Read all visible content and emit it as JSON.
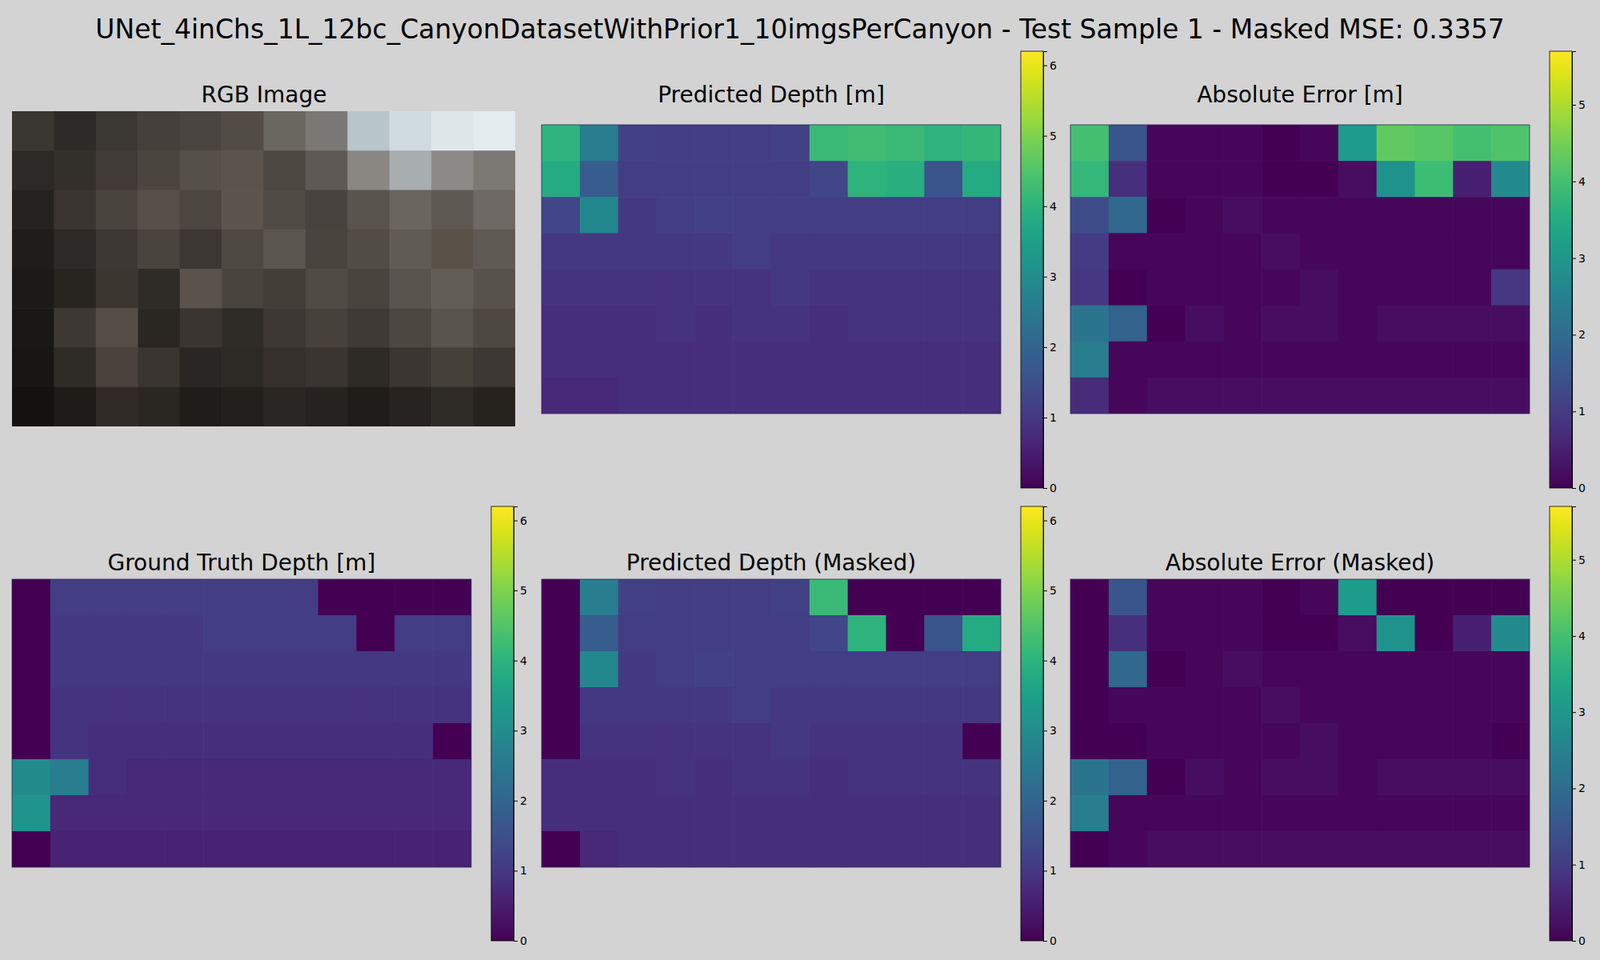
{
  "title": "UNet_4inChs_1L_12bc_CanyonDatasetWithPrior1_10imgsPerCanyon - Test Sample 1 - Masked MSE: 0.3357",
  "chart_data": [
    {
      "type": "image",
      "title": "RGB Image",
      "tick_labels": false,
      "pixels": [
        [
          "#3a3632",
          "#2e2a27",
          "#3b3733",
          "#45403b",
          "#4a4540",
          "#524c46",
          "#6a6660",
          "#7a7874",
          "#b8c6cc",
          "#d0dbe0",
          "#dfe7ea",
          "#e4ecef"
        ],
        [
          "#2c2926",
          "#332f2b",
          "#403b36",
          "#4b4540",
          "#56504a",
          "#5a544d",
          "#4d4842",
          "#5e5954",
          "#8a8782",
          "#a8aeb0",
          "#8c8a86",
          "#7c7975"
        ],
        [
          "#25221f",
          "#3a3531",
          "#4a443e",
          "#57504a",
          "#4c4640",
          "#5b554e",
          "#514b45",
          "#48433e",
          "#5a544e",
          "#6a655f",
          "#5e5953",
          "#6e6964"
        ],
        [
          "#1f1c1a",
          "#2e2a27",
          "#3d3833",
          "#4a443e",
          "#3c3733",
          "#4f4944",
          "#5c5650",
          "#4a443f",
          "#524c46",
          "#615b55",
          "#585249",
          "#5f5a54"
        ],
        [
          "#1c1a18",
          "#28241f",
          "#3c3631",
          "#2f2b27",
          "#5a524b",
          "#4a443e",
          "#433e38",
          "#514b45",
          "#4a443f",
          "#5a544e",
          "#635d57",
          "#57524c"
        ],
        [
          "#1a1816",
          "#3d3833",
          "#544d46",
          "#2a2622",
          "#3a3531",
          "#2f2b27",
          "#3d3833",
          "#47413b",
          "#3f3a35",
          "#4d4742",
          "#5a544e",
          "#4e4843"
        ],
        [
          "#181614",
          "#2f2b27",
          "#4a433d",
          "#3a3530",
          "#2a2623",
          "#2d2925",
          "#35302c",
          "#3a3530",
          "#2e2a26",
          "#3b3631",
          "#46403b",
          "#3d3833"
        ],
        [
          "#141210",
          "#1e1b18",
          "#302b27",
          "#2a2622",
          "#1f1c19",
          "#221f1c",
          "#2a2623",
          "#25221f",
          "#1f1c1a",
          "#272320",
          "#2f2b27",
          "#26231f"
        ]
      ]
    },
    {
      "type": "heatmap",
      "title": "Predicted Depth [m]",
      "color": "viridis",
      "tick_labels": false,
      "colorbar": {
        "lim": [
          0,
          6.2
        ],
        "ticks": [
          0,
          1,
          2,
          3,
          4,
          5,
          6
        ]
      },
      "cells": [
        [
          4.0,
          2.6,
          1.2,
          1.1,
          1.1,
          1.1,
          1.2,
          4.2,
          4.3,
          4.2,
          4.0,
          4.1
        ],
        [
          3.8,
          1.8,
          1.1,
          1.1,
          1.1,
          1.1,
          1.1,
          1.3,
          4.0,
          3.9,
          1.6,
          3.8
        ],
        [
          1.3,
          2.9,
          1.0,
          1.1,
          1.2,
          1.1,
          1.1,
          1.1,
          1.1,
          1.1,
          1.1,
          1.1
        ],
        [
          1.0,
          1.0,
          1.0,
          1.0,
          1.0,
          1.1,
          1.0,
          1.0,
          1.0,
          1.0,
          1.0,
          1.0
        ],
        [
          0.9,
          0.9,
          0.9,
          0.9,
          0.9,
          0.9,
          1.0,
          0.9,
          0.9,
          0.9,
          0.9,
          0.9
        ],
        [
          0.8,
          0.8,
          0.8,
          0.9,
          0.8,
          0.9,
          0.9,
          0.8,
          0.9,
          0.9,
          0.9,
          0.9
        ],
        [
          0.8,
          0.8,
          0.8,
          0.8,
          0.8,
          0.8,
          0.8,
          0.8,
          0.8,
          0.8,
          0.8,
          0.8
        ],
        [
          0.7,
          0.7,
          0.8,
          0.8,
          0.8,
          0.8,
          0.8,
          0.8,
          0.8,
          0.8,
          0.8,
          0.8
        ]
      ]
    },
    {
      "type": "heatmap",
      "title": "Absolute Error [m]",
      "color": "viridis",
      "tick_labels": false,
      "colorbar": {
        "lim": [
          0,
          5.7
        ],
        "ticks": [
          0,
          1,
          2,
          3,
          4,
          5
        ]
      },
      "cells": [
        [
          4.0,
          1.5,
          0.1,
          0.1,
          0.1,
          0.0,
          0.1,
          3.1,
          4.3,
          4.2,
          4.0,
          4.1
        ],
        [
          3.8,
          0.8,
          0.1,
          0.1,
          0.1,
          0.0,
          0.0,
          0.2,
          2.9,
          3.9,
          0.5,
          2.7
        ],
        [
          1.3,
          1.9,
          0.0,
          0.1,
          0.2,
          0.1,
          0.1,
          0.1,
          0.1,
          0.1,
          0.1,
          0.1
        ],
        [
          1.0,
          0.1,
          0.1,
          0.1,
          0.1,
          0.2,
          0.1,
          0.1,
          0.1,
          0.1,
          0.1,
          0.1
        ],
        [
          0.9,
          0.0,
          0.1,
          0.1,
          0.1,
          0.1,
          0.2,
          0.1,
          0.1,
          0.1,
          0.1,
          0.9
        ],
        [
          2.2,
          1.8,
          0.0,
          0.2,
          0.1,
          0.2,
          0.2,
          0.1,
          0.2,
          0.2,
          0.2,
          0.2
        ],
        [
          2.4,
          0.1,
          0.1,
          0.1,
          0.1,
          0.1,
          0.1,
          0.1,
          0.1,
          0.1,
          0.1,
          0.1
        ],
        [
          0.7,
          0.1,
          0.2,
          0.2,
          0.2,
          0.2,
          0.2,
          0.2,
          0.2,
          0.2,
          0.2,
          0.2
        ]
      ]
    },
    {
      "type": "heatmap",
      "title": "Ground Truth Depth [m]",
      "color": "viridis",
      "tick_labels": false,
      "colorbar": {
        "lim": [
          0,
          6.2
        ],
        "ticks": [
          0,
          1,
          2,
          3,
          4,
          5,
          6
        ]
      },
      "cells": [
        [
          0,
          1.1,
          1.1,
          1.1,
          1.1,
          1.1,
          1.1,
          1.1,
          0,
          0,
          0,
          0
        ],
        [
          0,
          1.0,
          1.0,
          1.0,
          1.0,
          1.1,
          1.1,
          1.1,
          1.1,
          0,
          1.1,
          1.1
        ],
        [
          0,
          1.0,
          1.0,
          1.0,
          1.0,
          1.0,
          1.0,
          1.0,
          1.0,
          1.0,
          1.0,
          1.0
        ],
        [
          0,
          0.9,
          0.9,
          0.9,
          0.9,
          0.9,
          0.9,
          0.9,
          0.9,
          0.9,
          0.9,
          0.9
        ],
        [
          0,
          0.9,
          0.8,
          0.8,
          0.8,
          0.8,
          0.8,
          0.8,
          0.8,
          0.8,
          0.8,
          0
        ],
        [
          3.0,
          2.6,
          0.8,
          0.7,
          0.7,
          0.7,
          0.7,
          0.7,
          0.7,
          0.7,
          0.7,
          0.7
        ],
        [
          3.2,
          0.7,
          0.7,
          0.7,
          0.7,
          0.7,
          0.7,
          0.7,
          0.7,
          0.7,
          0.7,
          0.7
        ],
        [
          0,
          0.6,
          0.6,
          0.6,
          0.6,
          0.6,
          0.6,
          0.6,
          0.6,
          0.6,
          0.6,
          0.6
        ]
      ]
    },
    {
      "type": "heatmap",
      "title": "Predicted Depth (Masked)",
      "color": "viridis",
      "tick_labels": false,
      "colorbar": {
        "lim": [
          0,
          6.2
        ],
        "ticks": [
          0,
          1,
          2,
          3,
          4,
          5,
          6
        ]
      },
      "cells": [
        [
          0,
          2.6,
          1.2,
          1.1,
          1.1,
          1.1,
          1.2,
          4.2,
          0,
          0,
          0,
          0
        ],
        [
          0,
          1.8,
          1.1,
          1.1,
          1.1,
          1.1,
          1.1,
          1.3,
          4.0,
          0,
          1.6,
          3.8
        ],
        [
          0,
          2.9,
          1.0,
          1.1,
          1.2,
          1.1,
          1.1,
          1.1,
          1.1,
          1.1,
          1.1,
          1.1
        ],
        [
          0,
          1.0,
          1.0,
          1.0,
          1.0,
          1.1,
          1.0,
          1.0,
          1.0,
          1.0,
          1.0,
          1.0
        ],
        [
          0,
          0.9,
          0.9,
          0.9,
          0.9,
          0.9,
          1.0,
          0.9,
          0.9,
          0.9,
          0.9,
          0
        ],
        [
          0.8,
          0.8,
          0.8,
          0.9,
          0.8,
          0.9,
          0.9,
          0.8,
          0.9,
          0.9,
          0.9,
          0.9
        ],
        [
          0.8,
          0.8,
          0.8,
          0.8,
          0.8,
          0.8,
          0.8,
          0.8,
          0.8,
          0.8,
          0.8,
          0.8
        ],
        [
          0,
          0.7,
          0.8,
          0.8,
          0.8,
          0.8,
          0.8,
          0.8,
          0.8,
          0.8,
          0.8,
          0.8
        ]
      ]
    },
    {
      "type": "heatmap",
      "title": "Absolute Error (Masked)",
      "color": "viridis",
      "tick_labels": false,
      "colorbar": {
        "lim": [
          0,
          5.7
        ],
        "ticks": [
          0,
          1,
          2,
          3,
          4,
          5
        ]
      },
      "cells": [
        [
          0,
          1.5,
          0.1,
          0.1,
          0.1,
          0.0,
          0.1,
          3.1,
          0,
          0,
          0,
          0
        ],
        [
          0,
          0.8,
          0.1,
          0.1,
          0.1,
          0.0,
          0.0,
          0.2,
          2.9,
          0,
          0.5,
          2.7
        ],
        [
          0,
          1.9,
          0.0,
          0.1,
          0.2,
          0.1,
          0.1,
          0.1,
          0.1,
          0.1,
          0.1,
          0.1
        ],
        [
          0,
          0.1,
          0.1,
          0.1,
          0.1,
          0.2,
          0.1,
          0.1,
          0.1,
          0.1,
          0.1,
          0.1
        ],
        [
          0,
          0.0,
          0.1,
          0.1,
          0.1,
          0.1,
          0.2,
          0.1,
          0.1,
          0.1,
          0.1,
          0
        ],
        [
          2.2,
          1.8,
          0.0,
          0.2,
          0.1,
          0.2,
          0.2,
          0.1,
          0.2,
          0.2,
          0.2,
          0.2
        ],
        [
          2.4,
          0.1,
          0.1,
          0.1,
          0.1,
          0.1,
          0.1,
          0.1,
          0.1,
          0.1,
          0.1,
          0.1
        ],
        [
          0,
          0.1,
          0.2,
          0.2,
          0.2,
          0.2,
          0.2,
          0.2,
          0.2,
          0.2,
          0.2,
          0.2
        ]
      ]
    }
  ]
}
